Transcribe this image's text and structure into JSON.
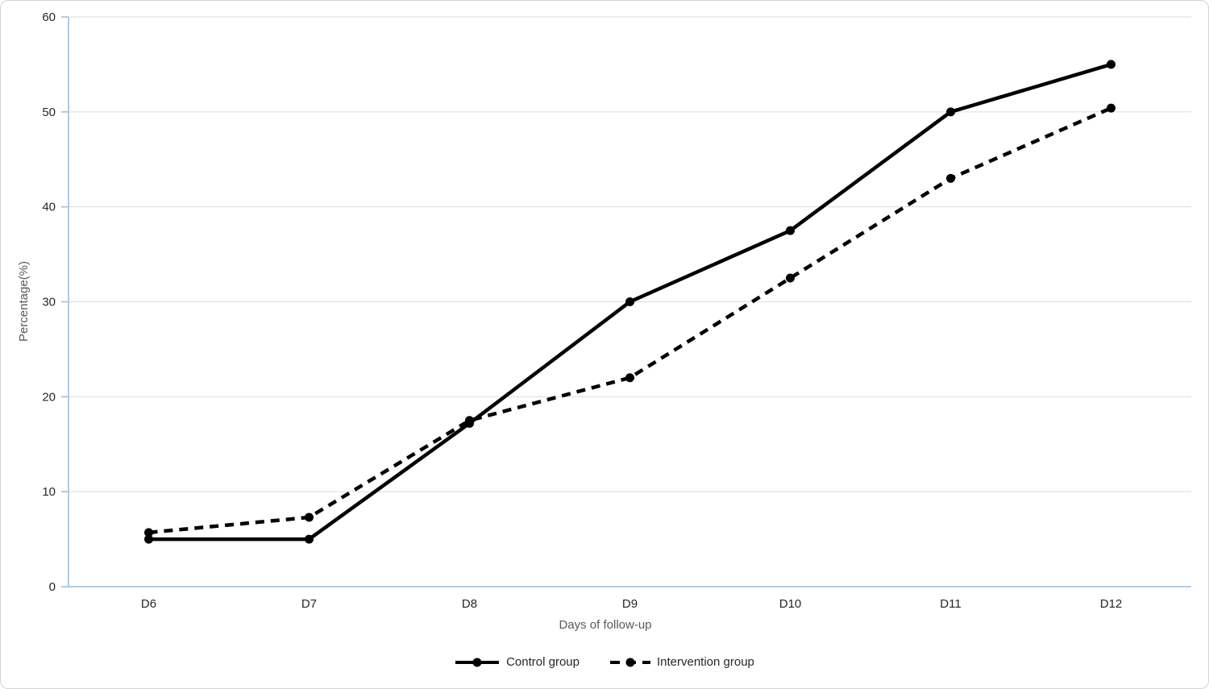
{
  "chart_data": {
    "type": "line",
    "categories": [
      "D6",
      "D7",
      "D8",
      "D9",
      "D10",
      "D11",
      "D12"
    ],
    "series": [
      {
        "name": "Control group",
        "line_style": "solid",
        "marker": "filled-circle",
        "values": [
          5,
          5,
          17.2,
          30,
          37.5,
          50,
          55
        ]
      },
      {
        "name": "Intervention group",
        "line_style": "dashed",
        "marker": "filled-circle",
        "values": [
          5.7,
          7.3,
          17.5,
          22,
          32.5,
          43,
          50.4
        ]
      }
    ],
    "title": "",
    "xlabel": "Days of follow-up",
    "ylabel": "Percentage(%)",
    "ylim": [
      0,
      60
    ],
    "yticks": [
      0,
      10,
      20,
      30,
      40,
      50,
      60
    ],
    "grid": "horizontal",
    "legend_position": "bottom-center"
  },
  "theme": {
    "series_color": "#000000",
    "axis_color": "#a9c4de",
    "gridline_color": "#dcdcdc",
    "tick_label_color": "#262626",
    "axis_title_color": "#595959",
    "legend_text_color": "#262626",
    "frame_border_color": "#d4d4d4",
    "background_color": "#ffffff"
  }
}
